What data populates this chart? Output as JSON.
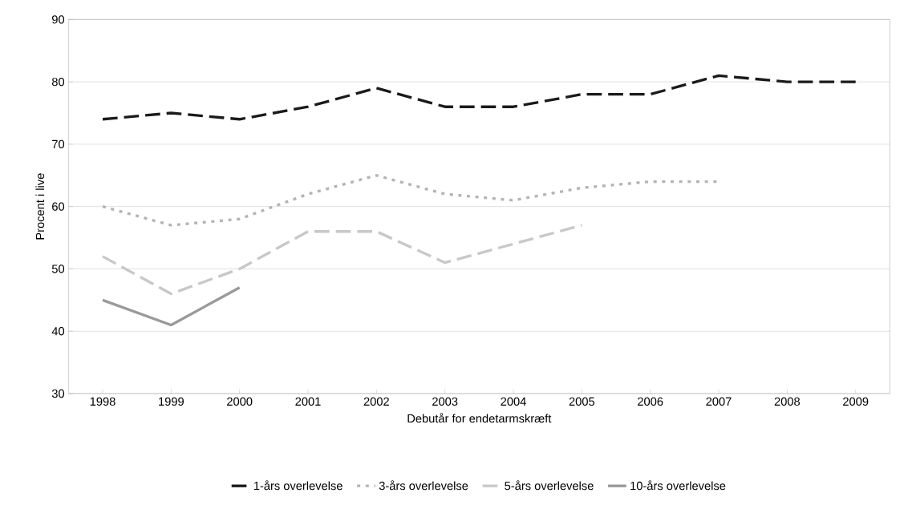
{
  "chart_data": {
    "type": "line",
    "xlabel": "Debutår for endetarmskræft",
    "ylabel": "Procent i live",
    "categories": [
      "1998",
      "1999",
      "2000",
      "2001",
      "2002",
      "2003",
      "2004",
      "2005",
      "2006",
      "2007",
      "2008",
      "2009"
    ],
    "ylim": [
      30,
      90
    ],
    "yticks": [
      30,
      40,
      50,
      60,
      70,
      80,
      90
    ],
    "grid": "y",
    "legend": "bottom",
    "series": [
      {
        "name": "1-års overlevelse",
        "color": "#1a1a1a",
        "line_style": "dashed",
        "values": [
          74,
          75,
          74,
          76,
          79,
          76,
          76,
          78,
          78,
          81,
          80,
          80
        ]
      },
      {
        "name": "3-års overlevelse",
        "color": "#b4b4b4",
        "line_style": "dotted",
        "values": [
          60,
          57,
          58,
          62,
          65,
          62,
          61,
          63,
          64,
          64,
          null,
          null
        ]
      },
      {
        "name": "5-års overlevelse",
        "color": "#c8c8c8",
        "line_style": "dashed",
        "values": [
          52,
          46,
          50,
          56,
          56,
          51,
          54,
          57,
          null,
          null,
          null,
          null
        ]
      },
      {
        "name": "10-års overlevelse",
        "color": "#9a9a9a",
        "line_style": "solid",
        "values": [
          45,
          41,
          47,
          null,
          null,
          null,
          null,
          null,
          null,
          null,
          null,
          null
        ]
      }
    ]
  }
}
